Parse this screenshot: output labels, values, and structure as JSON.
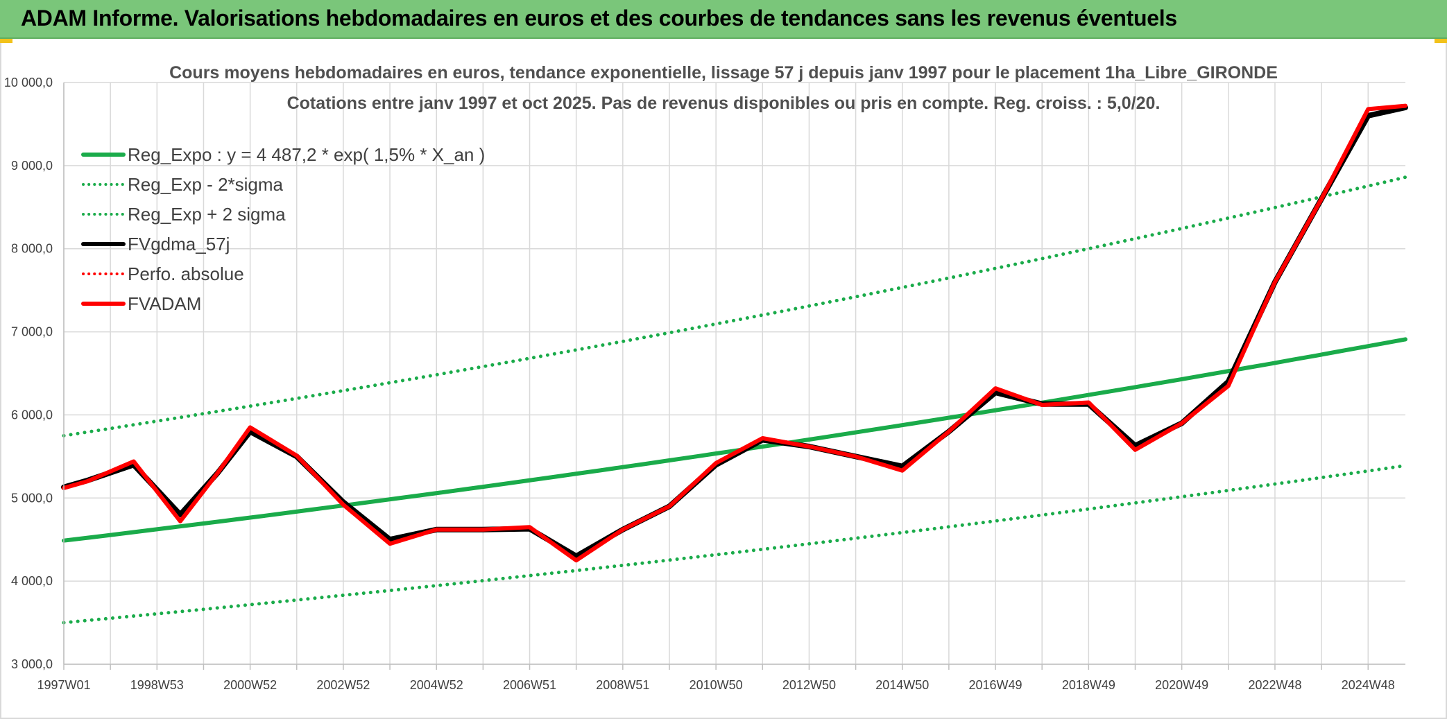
{
  "header": {
    "title": "ADAM Informe. Valorisations hebdomadaires en euros et des courbes de tendances sans les revenus éventuels"
  },
  "chart_data": {
    "type": "line",
    "title": "Cours moyens hebdomadaires en euros, tendance exponentielle, lissage 57 j depuis janv 1997 pour le placement 1ha_Libre_GIRONDE",
    "subtitle": "Cotations entre janv 1997 et oct 2025. Pas de revenus disponibles ou pris en compte. Reg. croiss. : 5,0/20.",
    "xlabel": "",
    "ylabel": "",
    "ylim": [
      3000,
      10000
    ],
    "xlim": [
      1997.0,
      2025.8
    ],
    "y_ticks": [
      3000,
      4000,
      5000,
      6000,
      7000,
      8000,
      9000,
      10000
    ],
    "y_tick_labels": [
      "3 000,0",
      "4 000,0",
      "5 000,0",
      "6 000,0",
      "7 000,0",
      "8 000,0",
      "9 000,0",
      "10 000,0"
    ],
    "x_ticks": [
      1997.0,
      1999.0,
      2001.0,
      2003.0,
      2005.0,
      2007.0,
      2009.0,
      2011.0,
      2013.0,
      2015.0,
      2017.0,
      2019.0,
      2021.0,
      2023.0,
      2025.0
    ],
    "x_tick_labels": [
      "1997W01",
      "1998W53",
      "2000W52",
      "2002W52",
      "2004W52",
      "2006W51",
      "2008W51",
      "2010W50",
      "2012W50",
      "2014W50",
      "2016W49",
      "2018W49",
      "2020W49",
      "2022W48",
      "2024W48"
    ],
    "grid": true,
    "legend_position": "top-left",
    "series": [
      {
        "name": "Reg_Expo : y = 4 487,2 * exp( 1,5% *  X_an )",
        "color": "#1aab4a",
        "style": "solid",
        "width": 6,
        "x": [
          1997.0,
          2025.8
        ],
        "values": [
          4487.2,
          6910
        ]
      },
      {
        "name": "Reg_Exp - 2*sigma",
        "color": "#1aab4a",
        "style": "dotted",
        "width": 5,
        "x": [
          1997.0,
          2025.8
        ],
        "values": [
          3500,
          5390
        ]
      },
      {
        "name": "Reg_Exp + 2 sigma",
        "color": "#1aab4a",
        "style": "dotted",
        "width": 5,
        "x": [
          1997.0,
          2025.8
        ],
        "values": [
          5750,
          8860
        ]
      },
      {
        "name": "FVgdma_57j",
        "color": "#000000",
        "style": "solid",
        "width": 8,
        "x": [
          1997.0,
          1997.5,
          1998.5,
          1999.5,
          2000.3,
          2001.0,
          2002.0,
          2003.0,
          2004.0,
          2005.0,
          2006.0,
          2007.0,
          2008.0,
          2009.0,
          2010.0,
          2011.0,
          2012.0,
          2013.0,
          2014.0,
          2015.0,
          2016.0,
          2017.0,
          2018.0,
          2019.0,
          2020.0,
          2021.0,
          2022.0,
          2023.0,
          2024.0,
          2025.0,
          2025.8
        ],
        "values": [
          5130,
          5210,
          5400,
          4800,
          5300,
          5800,
          5500,
          4950,
          4500,
          4620,
          4620,
          4630,
          4300,
          4620,
          4900,
          5400,
          5700,
          5620,
          5500,
          5380,
          5800,
          6270,
          6130,
          6130,
          5630,
          5900,
          6400,
          7600,
          8600,
          9600,
          9700
        ]
      },
      {
        "name": "Perfo. absolue",
        "color": "#ff0000",
        "style": "dotted",
        "width": 4,
        "x": [],
        "values": []
      },
      {
        "name": "FVADAM",
        "color": "#ff0000",
        "style": "solid",
        "width": 6,
        "x": [
          1997.0,
          1997.5,
          1998.5,
          1999.5,
          2000.3,
          2001.0,
          2002.0,
          2003.0,
          2004.0,
          2005.0,
          2006.0,
          2007.0,
          2008.0,
          2009.0,
          2010.0,
          2011.0,
          2012.0,
          2013.0,
          2014.0,
          2015.0,
          2016.0,
          2017.0,
          2018.0,
          2019.0,
          2020.0,
          2021.0,
          2022.0,
          2023.0,
          2024.0,
          2025.0,
          2025.8
        ],
        "values": [
          5120,
          5200,
          5440,
          4720,
          5300,
          5850,
          5510,
          4920,
          4450,
          4620,
          4620,
          4650,
          4250,
          4620,
          4900,
          5420,
          5720,
          5620,
          5500,
          5330,
          5800,
          6320,
          6120,
          6150,
          5580,
          5900,
          6350,
          7600,
          8600,
          9680,
          9720
        ]
      }
    ]
  }
}
